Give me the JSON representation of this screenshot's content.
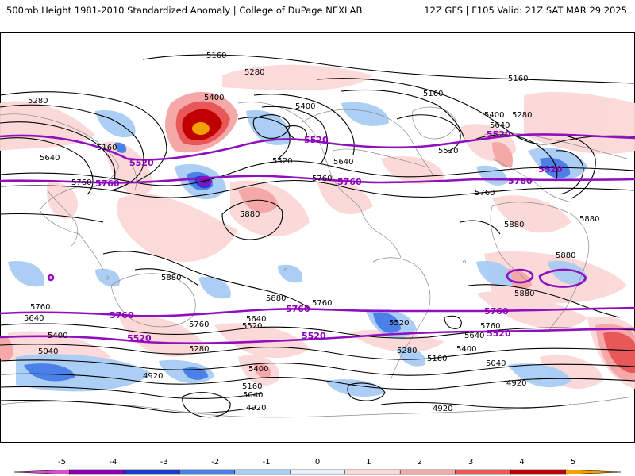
{
  "header": {
    "left": "500mb Height 1981-2010 Standardized Anomaly | College of DuPage NEXLAB",
    "right": "12Z GFS | F105 Valid: 21Z SAT MAR 29 2025"
  },
  "contour_labels": {
    "c5160": "5160",
    "c5280": "5280",
    "c5400": "5400",
    "c5520": "5520",
    "c5640": "5640",
    "c5760": "5760",
    "c5880": "5880",
    "c5040": "5040",
    "c4920": "4920"
  },
  "highlight_labels": {
    "h5520": "5520",
    "h5760": "5760"
  },
  "colorbar": {
    "ticks": [
      "-5",
      "-4",
      "-3",
      "-2",
      "-1",
      "0",
      "1",
      "2",
      "3",
      "4",
      "5"
    ],
    "colors": [
      "#d44fd4",
      "#8a00b0",
      "#1a3cc8",
      "#4a80e8",
      "#a8ccf4",
      "#e6f0fc",
      "#fcd8d8",
      "#f4a8a8",
      "#e85858",
      "#c00000",
      "#f4a000"
    ]
  },
  "palette": {
    "highlight": "#9010c0",
    "coast": "#8a8a8a"
  }
}
